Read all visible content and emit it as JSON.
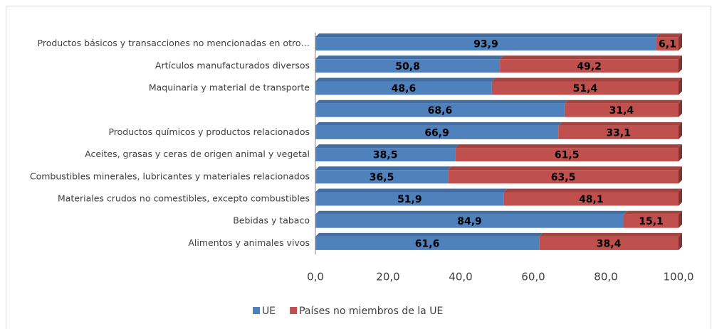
{
  "chart_data": {
    "type": "bar",
    "orientation": "horizontal",
    "stacked": true,
    "categories": [
      "Productos básicos y transacciones no mencionadas en otro…",
      "Artículos manufacturados diversos",
      "Maquinaria y material de transporte",
      null,
      "Productos químicos y productos relacionados",
      "Aceites, grasas y ceras de origen animal y vegetal",
      "Combustibles minerales, lubricantes y materiales relacionados",
      "Materiales crudos no comestibles, excepto combustibles",
      "Bebidas y tabaco",
      "Alimentos y animales vivos"
    ],
    "series": [
      {
        "name": "UE",
        "color": "#4f81bd",
        "values": [
          93.9,
          50.8,
          48.6,
          68.6,
          66.9,
          38.5,
          36.5,
          51.9,
          84.9,
          61.6
        ],
        "value_labels": [
          "93,9",
          "50,8",
          "48,6",
          "68,6",
          "66,9",
          "38,5",
          "36,5",
          "51,9",
          "84,9",
          "61,6"
        ]
      },
      {
        "name": "Países no miembros de la UE",
        "color": "#c0504d",
        "values": [
          6.1,
          49.2,
          51.4,
          31.4,
          33.1,
          61.5,
          63.5,
          48.1,
          15.1,
          38.4
        ],
        "value_labels": [
          "6,1",
          "49,2",
          "51,4",
          "31,4",
          "33,1",
          "61,5",
          "63,5",
          "48,1",
          "15,1",
          "38,4"
        ]
      }
    ],
    "xlim": [
      0,
      100
    ],
    "xticks": [
      {
        "value": 0,
        "label": "0,0"
      },
      {
        "value": 20,
        "label": "20,0"
      },
      {
        "value": 40,
        "label": "40,0"
      },
      {
        "value": 60,
        "label": "60,0"
      },
      {
        "value": 80,
        "label": "80,0"
      },
      {
        "value": 100,
        "label": "100,0"
      }
    ],
    "legend": "bottom"
  }
}
